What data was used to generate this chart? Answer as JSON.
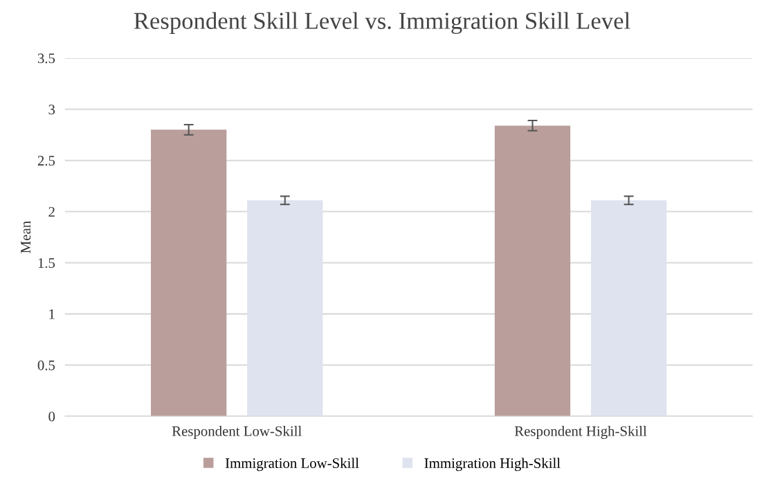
{
  "chart_data": {
    "type": "bar",
    "title": "Respondent Skill Level vs. Immigration Skill Level",
    "ylabel": "Mean",
    "categories": [
      "Respondent Low-Skill",
      "Respondent High-Skill"
    ],
    "series": [
      {
        "name": "Immigration Low-Skill",
        "color": "#b99e9b",
        "values": [
          2.8,
          2.84
        ],
        "errors": [
          0.05,
          0.05
        ]
      },
      {
        "name": "Immigration High-Skill",
        "color": "#dfe3ef",
        "values": [
          2.11,
          2.11
        ],
        "errors": [
          0.04,
          0.04
        ]
      }
    ],
    "ylim": [
      0,
      3.5
    ],
    "yticks": [
      0,
      0.5,
      1,
      1.5,
      2,
      2.5,
      3,
      3.5
    ],
    "grid": "y",
    "legend": "bottom"
  }
}
